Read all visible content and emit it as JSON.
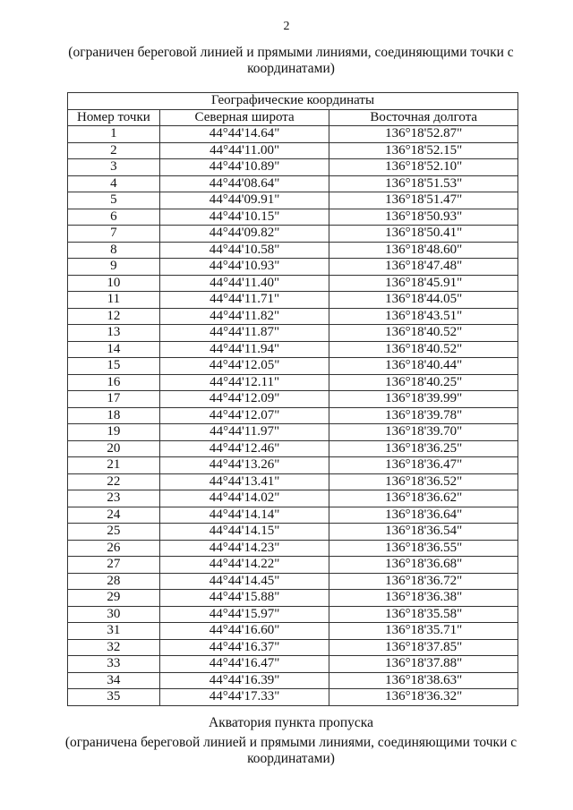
{
  "page_number": "2",
  "intro_text": "(ограничен береговой линией и прямыми линиями, соединяющими точки с координатами)",
  "table": {
    "group_header": "Географические координаты",
    "columns": [
      "Номер точки",
      "Северная широта",
      "Восточная долгота"
    ],
    "rows": [
      [
        "1",
        "44°44'14.64\"",
        "136°18'52.87\""
      ],
      [
        "2",
        "44°44'11.00\"",
        "136°18'52.15\""
      ],
      [
        "3",
        "44°44'10.89\"",
        "136°18'52.10\""
      ],
      [
        "4",
        "44°44'08.64\"",
        "136°18'51.53\""
      ],
      [
        "5",
        "44°44'09.91\"",
        "136°18'51.47\""
      ],
      [
        "6",
        "44°44'10.15\"",
        "136°18'50.93\""
      ],
      [
        "7",
        "44°44'09.82\"",
        "136°18'50.41\""
      ],
      [
        "8",
        "44°44'10.58\"",
        "136°18'48.60\""
      ],
      [
        "9",
        "44°44'10.93\"",
        "136°18'47.48\""
      ],
      [
        "10",
        "44°44'11.40\"",
        "136°18'45.91\""
      ],
      [
        "11",
        "44°44'11.71\"",
        "136°18'44.05\""
      ],
      [
        "12",
        "44°44'11.82\"",
        "136°18'43.51\""
      ],
      [
        "13",
        "44°44'11.87\"",
        "136°18'40.52\""
      ],
      [
        "14",
        "44°44'11.94\"",
        "136°18'40.52\""
      ],
      [
        "15",
        "44°44'12.05\"",
        "136°18'40.44\""
      ],
      [
        "16",
        "44°44'12.11\"",
        "136°18'40.25\""
      ],
      [
        "17",
        "44°44'12.09\"",
        "136°18'39.99\""
      ],
      [
        "18",
        "44°44'12.07\"",
        "136°18'39.78\""
      ],
      [
        "19",
        "44°44'11.97\"",
        "136°18'39.70\""
      ],
      [
        "20",
        "44°44'12.46\"",
        "136°18'36.25\""
      ],
      [
        "21",
        "44°44'13.26\"",
        "136°18'36.47\""
      ],
      [
        "22",
        "44°44'13.41\"",
        "136°18'36.52\""
      ],
      [
        "23",
        "44°44'14.02\"",
        "136°18'36.62\""
      ],
      [
        "24",
        "44°44'14.14\"",
        "136°18'36.64\""
      ],
      [
        "25",
        "44°44'14.15\"",
        "136°18'36.54\""
      ],
      [
        "26",
        "44°44'14.23\"",
        "136°18'36.55\""
      ],
      [
        "27",
        "44°44'14.22\"",
        "136°18'36.68\""
      ],
      [
        "28",
        "44°44'14.45\"",
        "136°18'36.72\""
      ],
      [
        "29",
        "44°44'15.88\"",
        "136°18'36.38\""
      ],
      [
        "30",
        "44°44'15.97\"",
        "136°18'35.58\""
      ],
      [
        "31",
        "44°44'16.60\"",
        "136°18'35.71\""
      ],
      [
        "32",
        "44°44'16.37\"",
        "136°18'37.85\""
      ],
      [
        "33",
        "44°44'16.47\"",
        "136°18'37.88\""
      ],
      [
        "34",
        "44°44'16.39\"",
        "136°18'38.63\""
      ],
      [
        "35",
        "44°44'17.33\"",
        "136°18'36.32\""
      ]
    ]
  },
  "section_title": "Акватория пункта пропуска",
  "section_text": "(ограничена береговой линией и прямыми линиями, соединяющими точки с координатами)"
}
